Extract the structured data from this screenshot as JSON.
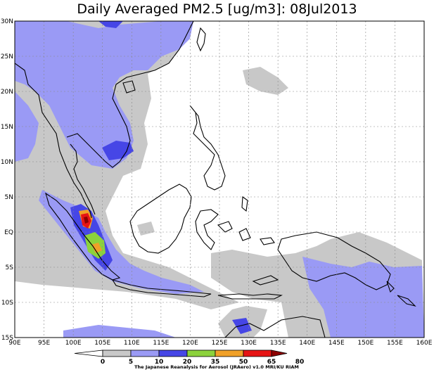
{
  "title": "Daily Averaged PM2.5 [ug/m3]: 08Jul2013",
  "map": {
    "lon_labels": [
      "90E",
      "95E",
      "100E",
      "105E",
      "110E",
      "115E",
      "120E",
      "125E",
      "130E",
      "135E",
      "140E",
      "145E",
      "150E",
      "155E",
      "160E"
    ],
    "lat_labels": [
      "30N",
      "25N",
      "20N",
      "15N",
      "10N",
      "5N",
      "EQ",
      "5S",
      "10S",
      "15S"
    ],
    "lon_range": [
      90,
      160
    ],
    "lat_range": [
      -15,
      30
    ],
    "gridlines": true
  },
  "colorbar": {
    "labels": [
      "0",
      "5",
      "10",
      "20",
      "35",
      "50",
      "65",
      "80"
    ],
    "bins": [
      {
        "from": 0,
        "to": 5,
        "color": "#ffffff"
      },
      {
        "from": 5,
        "to": 10,
        "color": "#c8c8c8"
      },
      {
        "from": 10,
        "to": 20,
        "color": "#9a9af5"
      },
      {
        "from": 20,
        "to": 35,
        "color": "#4646e6"
      },
      {
        "from": 35,
        "to": 50,
        "color": "#8cd23c"
      },
      {
        "from": 50,
        "to": 65,
        "color": "#f0a028"
      },
      {
        "from": 65,
        "to": 80,
        "color": "#e61414"
      },
      {
        "from": 80,
        "to": null,
        "color": "#8c0000"
      }
    ]
  },
  "credit": "The Japanese Reanalysis for Aerosol (JRAero) v1.0 MRI/KU RIAM"
}
